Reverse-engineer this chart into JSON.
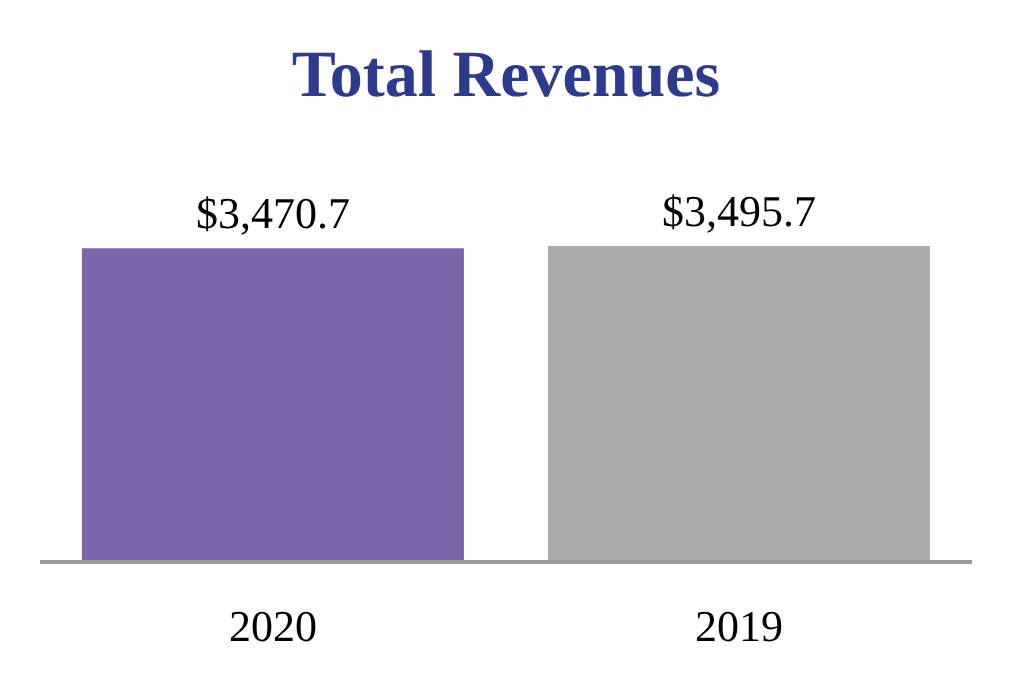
{
  "chart_data": {
    "type": "bar",
    "title": "Total Revenues",
    "categories": [
      "2020",
      "2019"
    ],
    "values": [
      3470.7,
      3495.7
    ],
    "colors": [
      "#7a67ab",
      "#aaaaaa"
    ],
    "value_labels": [
      "$3,470.7",
      "$3,495.7"
    ],
    "tick_labels": "x"
  }
}
